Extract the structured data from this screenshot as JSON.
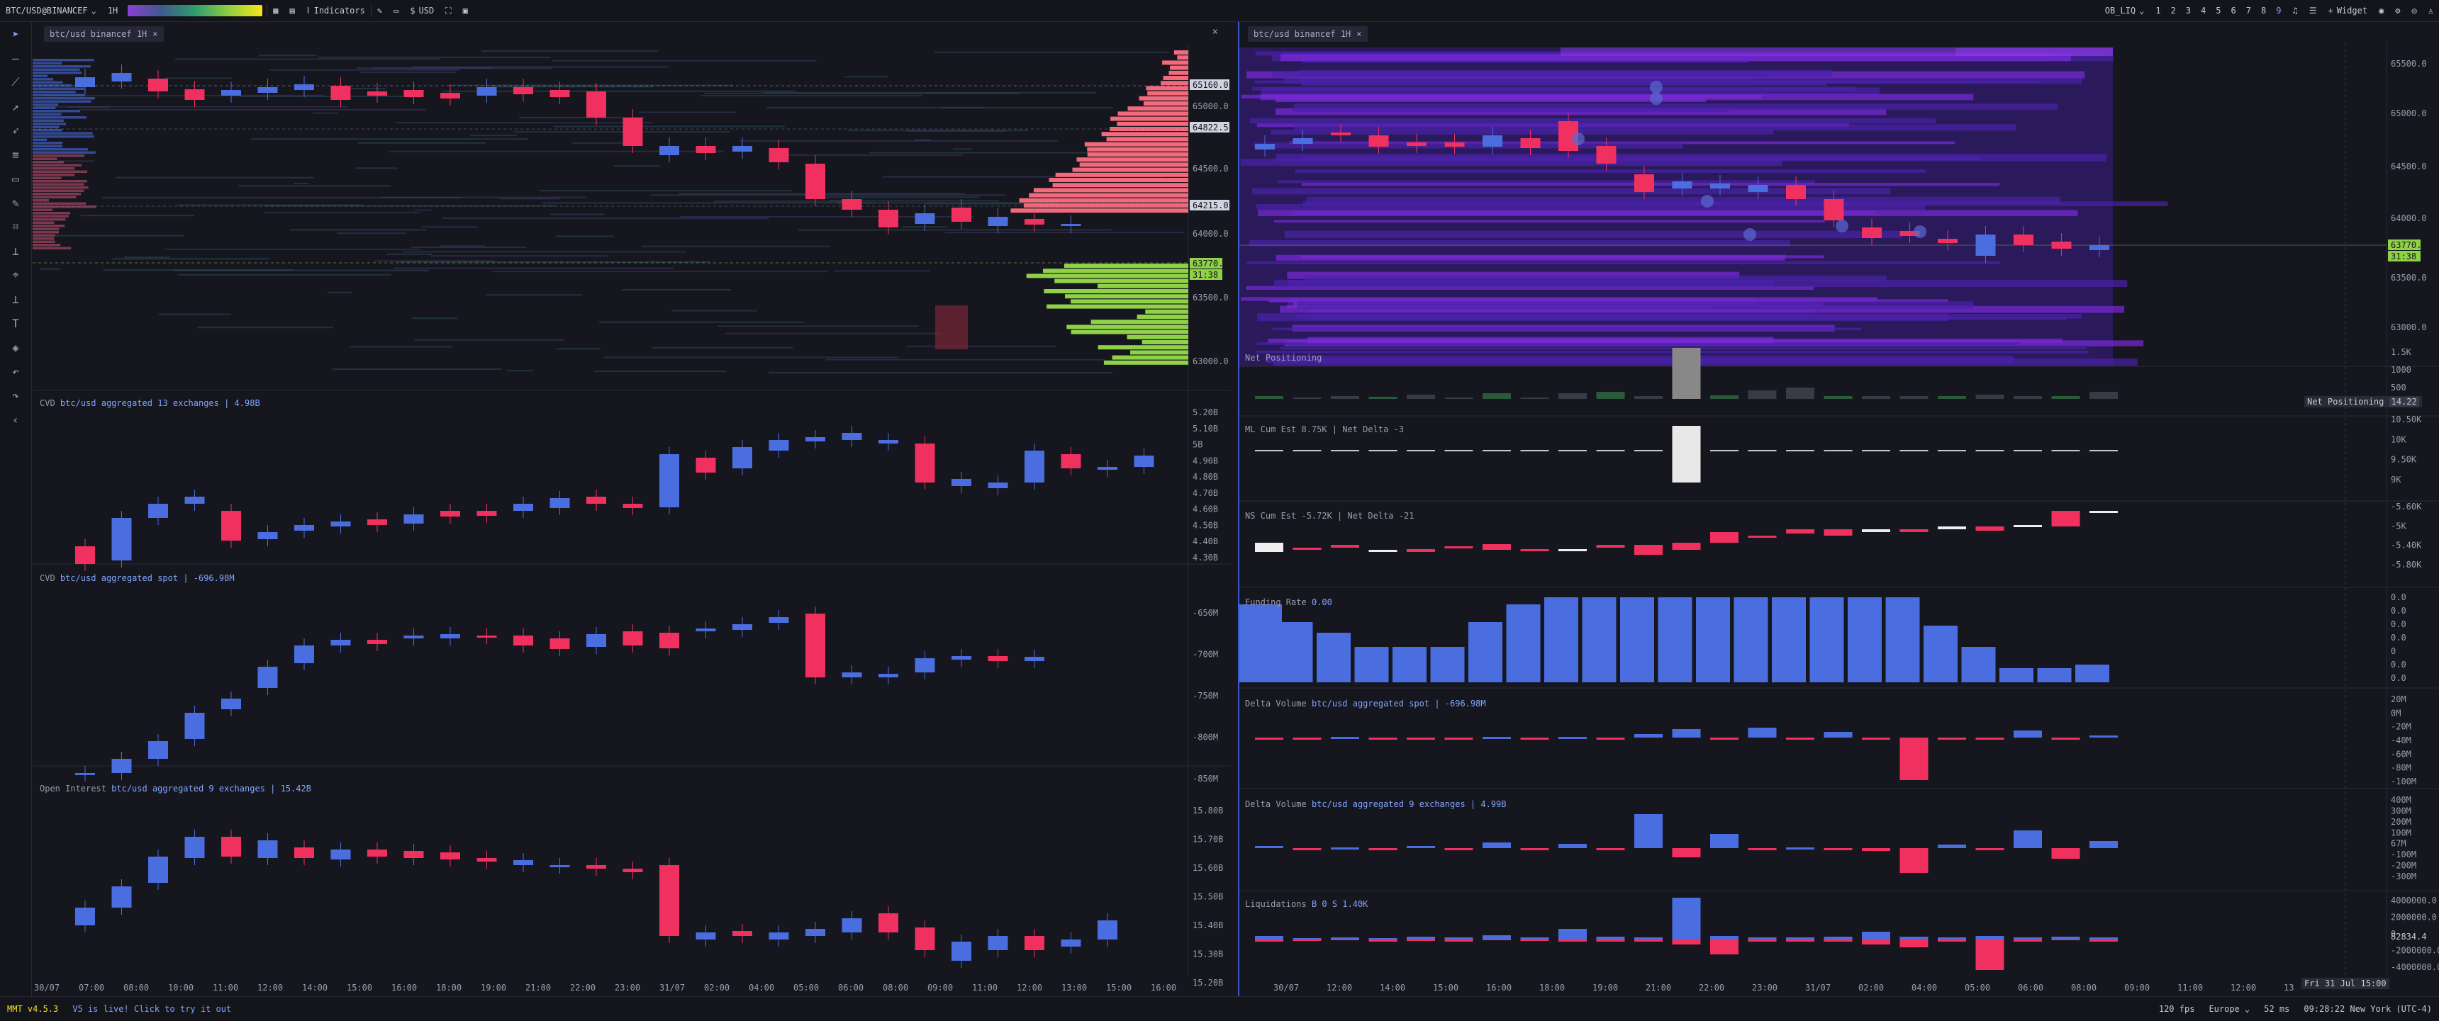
{
  "toolbar": {
    "symbol": "BTC/USD@BINANCEF",
    "timeframe": "1H",
    "indicators": "Indicators",
    "currency": "USD",
    "layout": "OB_LIQ",
    "slots": [
      "1",
      "2",
      "3",
      "4",
      "5",
      "6",
      "7",
      "8",
      "9"
    ],
    "widget": "Widget"
  },
  "left": {
    "tab": "btc/usd binancef 1H",
    "price_axis": [
      "65160.0",
      "65000.0",
      "64822.5",
      "64500.0",
      "64215.0",
      "64000.0",
      "63770.5",
      "31:38",
      "63500.0",
      "63000.0"
    ],
    "cvd1": {
      "label": "CVD",
      "source": "btc/usd aggregated 13 exchanges | 4.98B",
      "axis": [
        "5.20B",
        "5.10B",
        "5B",
        "4.90B",
        "4.80B",
        "4.70B",
        "4.60B",
        "4.50B",
        "4.40B",
        "4.30B"
      ]
    },
    "cvd2": {
      "label": "CVD",
      "source": "btc/usd aggregated spot | -696.98M",
      "axis": [
        "-650M",
        "-700M",
        "-750M",
        "-800M",
        "-850M"
      ]
    },
    "oi": {
      "label": "Open Interest",
      "source": "btc/usd aggregated 9 exchanges | 15.42B",
      "axis": [
        "15.80B",
        "15.70B",
        "15.60B",
        "15.50B",
        "15.40B",
        "15.30B",
        "15.20B"
      ]
    },
    "time_axis": [
      "30/07",
      "07:00",
      "08:00",
      "10:00",
      "11:00",
      "12:00",
      "14:00",
      "15:00",
      "16:00",
      "18:00",
      "19:00",
      "21:00",
      "22:00",
      "23:00",
      "31/07",
      "02:00",
      "04:00",
      "05:00",
      "06:00",
      "08:00",
      "09:00",
      "11:00",
      "12:00",
      "13:00",
      "15:00",
      "16:00"
    ]
  },
  "right": {
    "tab": "btc/usd binancef 1H",
    "price_axis": [
      "65500.0",
      "65000.0",
      "64500.0",
      "64000.0",
      "63770.5",
      "31:38",
      "63500.0",
      "63000.0"
    ],
    "net": {
      "label": "Net Positioning",
      "axis": [
        "1.5K",
        "1000",
        "500"
      ],
      "badge_label": "Net Positioning",
      "badge_value": "14.22"
    },
    "ml": {
      "label": "ML Cum Est  8.75K | Net Delta -3",
      "axis": [
        "10.50K",
        "10K",
        "9.50K",
        "9K"
      ]
    },
    "ns": {
      "label": "NS Cum Est  -5.72K | Net Delta -21",
      "axis": [
        "-5.60K",
        "-5K",
        "-5.40K",
        "-5.80K"
      ]
    },
    "funding": {
      "label": "Funding Rate",
      "value": "0.00",
      "axis": [
        "0.0",
        "0.0",
        "0.0",
        "0.0",
        "0",
        "0.0",
        "0.0"
      ]
    },
    "dv1": {
      "label": "Delta Volume",
      "source": "btc/usd aggregated spot | -696.98M",
      "axis": [
        "20M",
        "0M",
        "-20M",
        "-40M",
        "-60M",
        "-80M",
        "-100M"
      ]
    },
    "dv2": {
      "label": "Delta Volume",
      "source": "btc/usd aggregated 9 exchanges | 4.99B",
      "axis": [
        "400M",
        "300M",
        "200M",
        "100M",
        "67M",
        "-100M",
        "-200M",
        "-300M"
      ]
    },
    "liq": {
      "label": "Liquidations",
      "values": "B 0 S 1.40K",
      "axis": [
        "4000000.0",
        "2000000.0",
        "0",
        "-2000000.0",
        "-4000000.0"
      ],
      "mark": "82834.4"
    },
    "time_axis": [
      "30/07",
      "12:00",
      "14:00",
      "15:00",
      "16:00",
      "18:00",
      "19:00",
      "21:00",
      "22:00",
      "23:00",
      "31/07",
      "02:00",
      "04:00",
      "05:00",
      "06:00",
      "08:00",
      "09:00",
      "11:00",
      "12:00",
      "13"
    ],
    "cursor_time": "Fri 31 Jul 15:00"
  },
  "status": {
    "version": "MMT v4.5.3",
    "notice": "V5 is live! Click to try it out",
    "fps": "120 fps",
    "region": "Europe",
    "latency": "52 ms",
    "clock": "09:28:22 New York (UTC-4)"
  },
  "colors": {
    "up": "#4a6ee0",
    "down": "#f0305f",
    "bid": "#8fd147",
    "ask": "#f26a7c",
    "heat": "#5a1fb0"
  }
}
